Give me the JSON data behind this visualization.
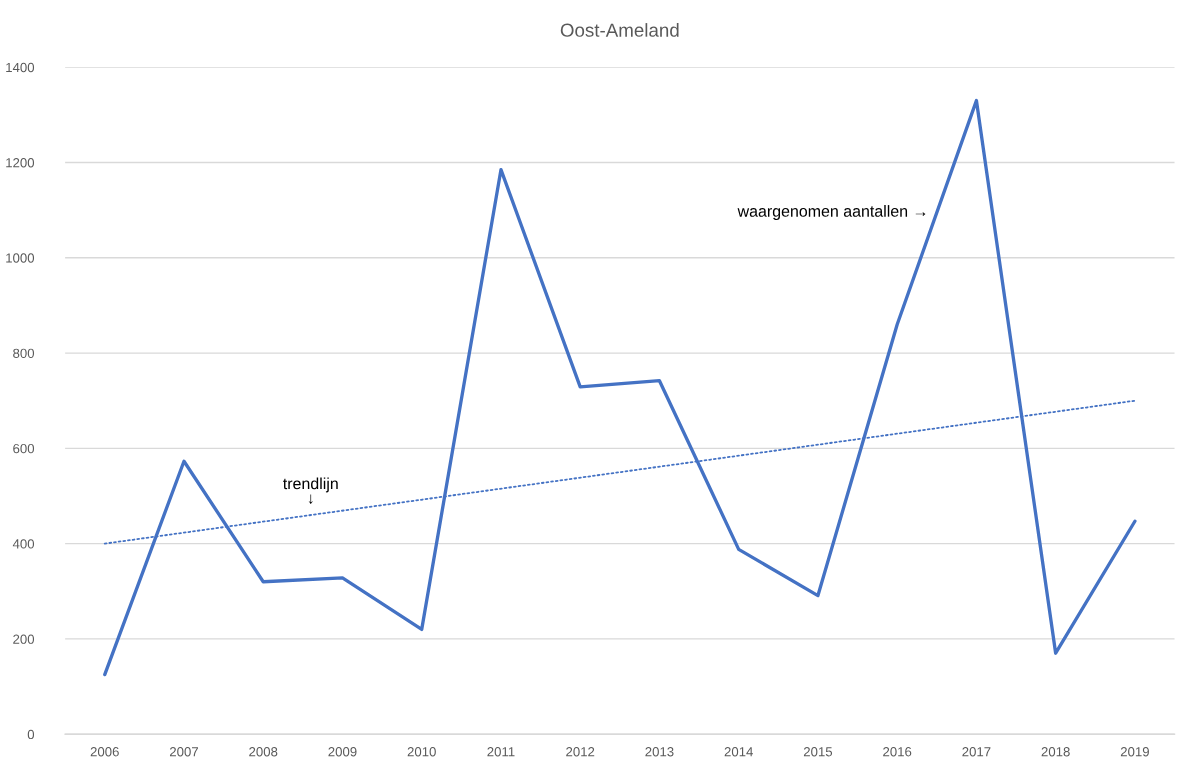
{
  "chart_data": {
    "type": "line",
    "title": "Oost-Ameland",
    "x": [
      2006,
      2007,
      2008,
      2009,
      2010,
      2011,
      2012,
      2013,
      2014,
      2015,
      2016,
      2017,
      2018,
      2019
    ],
    "xlim": [
      2005.5,
      2019.5
    ],
    "xticks": [
      2006,
      2007,
      2008,
      2009,
      2010,
      2011,
      2012,
      2013,
      2014,
      2015,
      2016,
      2017,
      2018,
      2019
    ],
    "ylim": [
      0,
      1400
    ],
    "yticks": [
      0,
      200,
      400,
      600,
      800,
      1000,
      1200,
      1400
    ],
    "grid": "y",
    "line_style": "solid",
    "series": [
      {
        "color": "#4472c4",
        "values": [
          125,
          573,
          320,
          328,
          220,
          1185,
          729,
          742,
          388,
          291,
          860,
          1330,
          170,
          447
        ]
      },
      {
        "type": "line",
        "x": [
          2006,
          2019
        ],
        "values": [
          400,
          700
        ],
        "color": "#4472c4",
        "line_style": "dotted"
      }
    ],
    "annotations": [
      {
        "text": "trendlijn\n↓",
        "x": 2008.6,
        "y": 460
      },
      {
        "text": "waargenomen aantallen →",
        "x": 2016.5,
        "y": 1095
      }
    ]
  }
}
